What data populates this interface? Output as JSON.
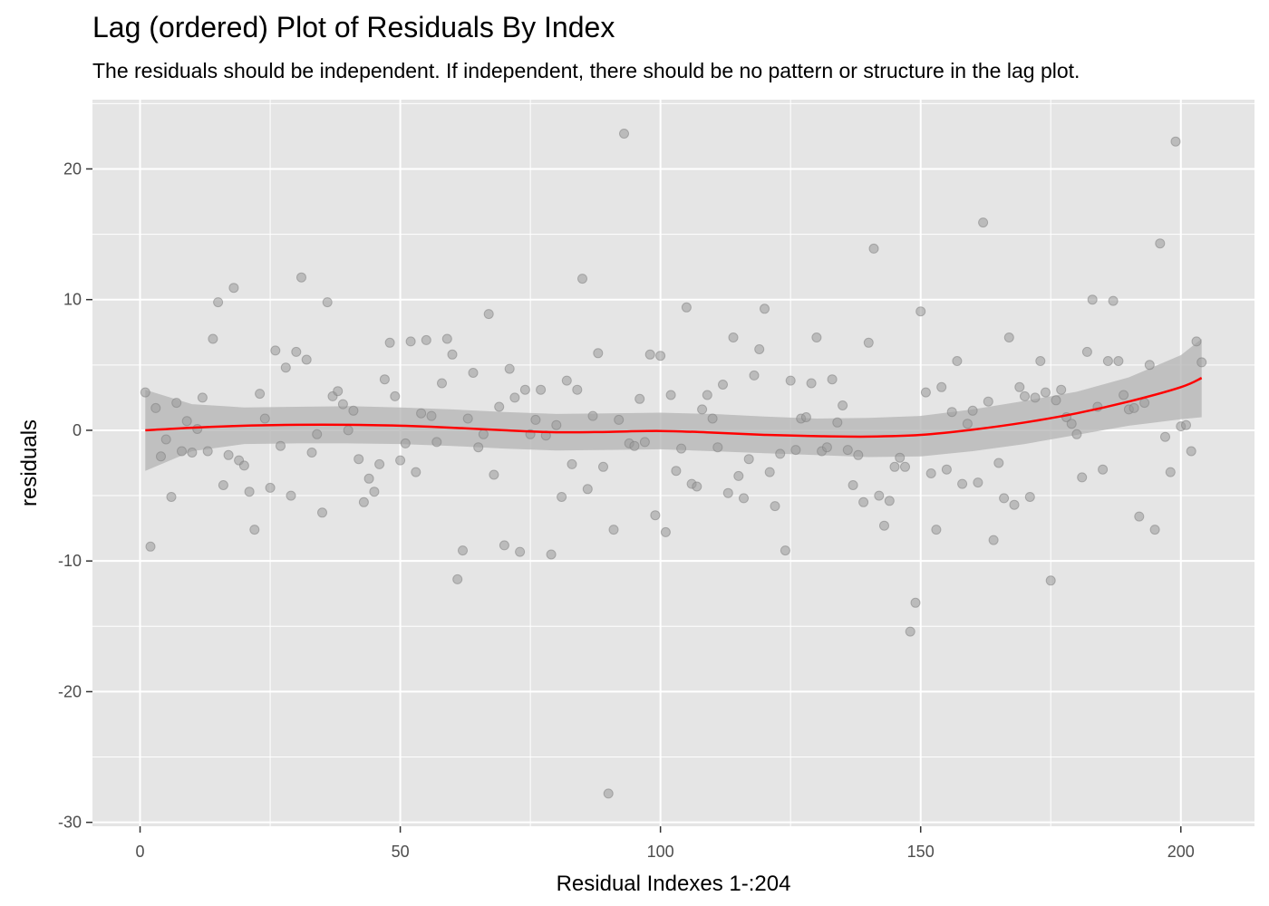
{
  "chart_data": {
    "type": "scatter",
    "title": "Lag (ordered) Plot of Residuals By Index",
    "subtitle": "The residuals should be independent. If independent, there should be no pattern or structure in the lag plot.",
    "xlabel": "Residual Indexes 1-:204",
    "ylabel": "residuals",
    "xlim": [
      -9.15,
      214.15
    ],
    "ylim": [
      -30.3,
      25.3
    ],
    "xticks": [
      0,
      50,
      100,
      150,
      200
    ],
    "xtick_labels": [
      "0",
      "50",
      "100",
      "150",
      "200"
    ],
    "yticks": [
      -30,
      -20,
      -10,
      0,
      10,
      20
    ],
    "ytick_labels": [
      "-30",
      "-20",
      "-10",
      "0",
      "10",
      "20"
    ],
    "grid": true,
    "colors": {
      "panel": "#e5e5e5",
      "grid": "#ffffff",
      "points": "#999999",
      "smooth_line": "#ff0000",
      "confidence_band": "#b3b3b3"
    },
    "series": [
      {
        "type": "points",
        "x": [
          1,
          2,
          3,
          4,
          5,
          6,
          7,
          8,
          9,
          10,
          11,
          12,
          13,
          14,
          15,
          16,
          17,
          18,
          19,
          20,
          21,
          22,
          23,
          24,
          25,
          26,
          27,
          28,
          29,
          30,
          31,
          32,
          33,
          34,
          35,
          36,
          37,
          38,
          39,
          40,
          41,
          42,
          43,
          44,
          45,
          46,
          47,
          48,
          49,
          50,
          51,
          52,
          53,
          54,
          55,
          56,
          57,
          58,
          59,
          60,
          61,
          62,
          63,
          64,
          65,
          66,
          67,
          68,
          69,
          70,
          71,
          72,
          73,
          74,
          75,
          76,
          77,
          78,
          79,
          80,
          81,
          82,
          83,
          84,
          85,
          86,
          87,
          88,
          89,
          90,
          91,
          92,
          93,
          94,
          95,
          96,
          97,
          98,
          99,
          100,
          101,
          102,
          103,
          104,
          105,
          106,
          107,
          108,
          109,
          110,
          111,
          112,
          113,
          114,
          115,
          116,
          117,
          118,
          119,
          120,
          121,
          122,
          123,
          124,
          125,
          126,
          127,
          128,
          129,
          130,
          131,
          132,
          133,
          134,
          135,
          136,
          137,
          138,
          139,
          140,
          141,
          142,
          143,
          144,
          145,
          146,
          147,
          148,
          149,
          150,
          151,
          152,
          153,
          154,
          155,
          156,
          157,
          158,
          159,
          160,
          161,
          162,
          163,
          164,
          165,
          166,
          167,
          168,
          169,
          170,
          171,
          172,
          173,
          174,
          175,
          176,
          177,
          178,
          179,
          180,
          181,
          182,
          183,
          184,
          185,
          186,
          187,
          188,
          189,
          190,
          191,
          192,
          193,
          194,
          195,
          196,
          197,
          198,
          199,
          200,
          201,
          202,
          203,
          204
        ],
        "y": [
          2.9,
          -8.9,
          1.7,
          -2.0,
          -0.7,
          -5.1,
          2.1,
          -1.6,
          0.7,
          -1.7,
          0.1,
          2.5,
          -1.6,
          7.0,
          9.8,
          -4.2,
          -1.9,
          10.9,
          -2.3,
          -2.7,
          -4.7,
          -7.6,
          2.8,
          0.9,
          -4.4,
          6.1,
          -1.2,
          4.8,
          -5.0,
          6.0,
          11.7,
          5.4,
          -1.7,
          -0.3,
          -6.3,
          9.8,
          2.6,
          3.0,
          2.0,
          0.0,
          1.5,
          -2.2,
          -5.5,
          -3.7,
          -4.7,
          -2.6,
          3.9,
          6.7,
          2.6,
          -2.3,
          -1.0,
          6.8,
          -3.2,
          1.3,
          6.9,
          1.1,
          -0.9,
          3.6,
          7.0,
          5.8,
          -11.4,
          -9.2,
          0.9,
          4.4,
          -1.3,
          -0.3,
          8.9,
          -3.4,
          1.8,
          -8.8,
          4.7,
          2.5,
          -9.3,
          3.1,
          -0.3,
          0.8,
          3.1,
          -0.4,
          -9.5,
          0.4,
          -5.1,
          3.8,
          -2.6,
          3.1,
          11.6,
          -4.5,
          1.1,
          5.9,
          -2.8,
          -27.8,
          -7.6,
          0.8,
          22.7,
          -1.0,
          -1.2,
          2.4,
          -0.9,
          5.8,
          -6.5,
          5.7,
          -7.8,
          2.7,
          -3.1,
          -1.4,
          9.4,
          -4.1,
          -4.3,
          1.6,
          2.7,
          0.9,
          -1.3,
          3.5,
          -4.8,
          7.1,
          -3.5,
          -5.2,
          -2.2,
          4.2,
          6.2,
          9.3,
          -3.2,
          -5.8,
          -1.8,
          -9.2,
          3.8,
          -1.5,
          0.9,
          1.0,
          3.6,
          7.1,
          -1.6,
          -1.3,
          3.9,
          0.6,
          1.9,
          -1.5,
          -4.2,
          -1.9,
          -5.5,
          6.7,
          13.9,
          -5.0,
          -7.3,
          -5.4,
          -2.8,
          -2.1,
          -2.8,
          -15.4,
          -13.2,
          9.1,
          2.9,
          -3.3,
          -7.6,
          3.3,
          -3.0,
          1.4,
          5.3,
          -4.1,
          0.5,
          1.5,
          -4.0,
          15.9,
          2.2,
          -8.4,
          -2.5,
          -5.2,
          7.1,
          -5.7,
          3.3,
          2.6,
          -5.1,
          2.5,
          5.3,
          2.9,
          -11.5,
          2.3,
          3.1,
          1.0,
          0.5,
          -0.3,
          -3.6,
          6.0,
          10.0,
          1.8,
          -3.0,
          5.3,
          9.9,
          5.3,
          2.7,
          1.6,
          1.7,
          -6.6,
          2.1,
          5.0,
          -7.6,
          14.3,
          -0.5,
          -3.2,
          22.1,
          0.3,
          0.4,
          -1.6,
          6.8,
          5.2
        ]
      },
      {
        "type": "smooth",
        "name": "",
        "x": [
          1,
          10,
          20,
          30,
          40,
          50,
          60,
          70,
          80,
          90,
          100,
          110,
          120,
          130,
          140,
          150,
          160,
          170,
          180,
          190,
          200,
          204
        ],
        "y": [
          0.0,
          0.2,
          0.35,
          0.42,
          0.42,
          0.35,
          0.2,
          0.0,
          -0.15,
          -0.12,
          -0.05,
          -0.18,
          -0.35,
          -0.45,
          -0.48,
          -0.35,
          0.05,
          0.6,
          1.3,
          2.2,
          3.3,
          4.0
        ],
        "lower": [
          -3.1,
          -1.6,
          -1.05,
          -1.0,
          -1.0,
          -1.05,
          -1.2,
          -1.4,
          -1.55,
          -1.5,
          -1.45,
          -1.6,
          -1.75,
          -1.9,
          -2.05,
          -2.0,
          -1.6,
          -1.05,
          -0.35,
          0.35,
          0.85,
          1.0
        ],
        "upper": [
          3.1,
          2.0,
          1.75,
          1.8,
          1.85,
          1.75,
          1.6,
          1.4,
          1.25,
          1.3,
          1.35,
          1.25,
          1.05,
          0.9,
          0.95,
          1.1,
          1.6,
          2.25,
          2.95,
          4.05,
          5.75,
          7.0
        ]
      }
    ]
  }
}
